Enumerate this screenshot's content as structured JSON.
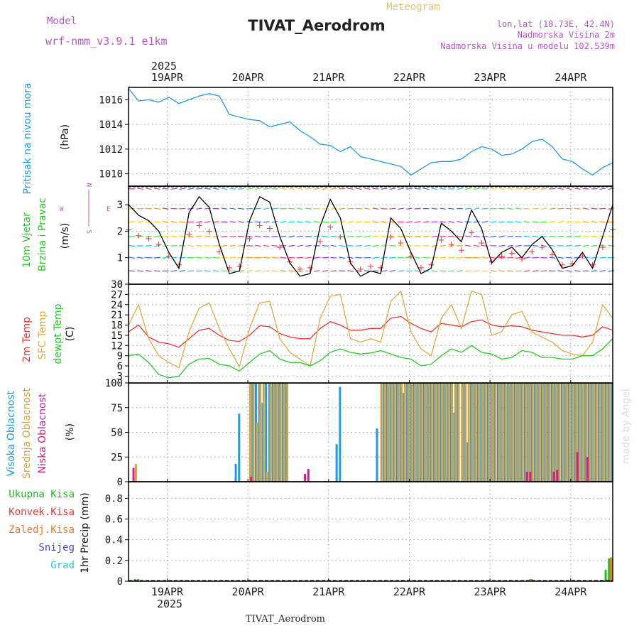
{
  "header": {
    "meteogram_label": "Meteogram",
    "title": "TIVAT_Aerodrom",
    "model_label": "Model",
    "model_name": "wrf-nmm_v3.9.1 e1km",
    "lonlat": "lon,lat (18.73E, 42.4N)",
    "elevation": "Nadmorska Visina 2m",
    "model_elevation": "Nadmorska Visina u modelu 102.539m"
  },
  "footer": {
    "station": "TIVAT_Aerodrom",
    "watermark": "made by Angel"
  },
  "time_axis": {
    "year": "2025",
    "dates": [
      "19APR",
      "20APR",
      "21APR",
      "22APR",
      "23APR",
      "24APR"
    ]
  },
  "colors": {
    "pressure": "#1e9be6",
    "temp_2m": "#ee3333",
    "temp_sfc": "#e0aa40",
    "dewpoint": "#22cc22",
    "cloud_high": "#1e9be6",
    "cloud_mid": "#d4a040",
    "cloud_low": "#cc2288",
    "precip_total": "#22bb22",
    "precip_conv": "#ee3333",
    "precip_frozen": "#ee7722",
    "precip_snow": "#4444dd",
    "precip_hail": "#22cccc",
    "wind_speed": "#000000",
    "gust": "#ee3333",
    "model_label": "#bb55cc",
    "meteogram_label": "#e6c272"
  },
  "panels": {
    "pressure": {
      "ylabel": "Pritisak na nivou mora",
      "unit": "(hPa)"
    },
    "wind": {
      "ylabel1": "10m Vjetar",
      "ylabel2": "Brzina i Pravac",
      "unit": "(m/s)",
      "compass": {
        "n": "N",
        "w": "W",
        "e": "E",
        "s": "S"
      }
    },
    "temperature": {
      "ylabel1": "2m Temp",
      "ylabel2": "SFC Temp",
      "ylabel3": "dewpt Temp",
      "unit": "(C)"
    },
    "cloud": {
      "ylabel1": "Visoka Oblacnost",
      "ylabel2": "Srednja Oblacnost",
      "ylabel3": "Niska Oblacnost",
      "unit": "(%)"
    },
    "precip": {
      "legend": [
        "Ukupna Kisa",
        "Konvek.Kisa",
        "Zaledj.Kisa",
        "Snijeg",
        "Grad"
      ],
      "ylabel": "1hr Precip (mm)"
    }
  },
  "chart_data": [
    {
      "type": "line",
      "title": "Pritisak na nivou mora",
      "ylabel": "(hPa)",
      "ylim": [
        1009,
        1017
      ],
      "yticks": [
        1010,
        1012,
        1014,
        1016
      ],
      "x_unit": "hours since 2025-04-18 12:00 UTC",
      "series": [
        {
          "name": "Pritisak na nivou mora",
          "x": [
            0,
            3,
            6,
            9,
            12,
            15,
            18,
            21,
            24,
            27,
            30,
            33,
            36,
            39,
            42,
            45,
            48,
            51,
            54,
            57,
            60,
            63,
            66,
            69,
            72,
            75,
            78,
            81,
            84,
            87,
            90,
            93,
            96,
            99,
            102,
            105,
            108,
            111,
            114,
            117,
            120,
            123,
            126,
            129,
            132,
            135,
            138,
            141,
            144
          ],
          "y": [
            1016.9,
            1015.9,
            1016.0,
            1015.8,
            1016.2,
            1015.7,
            1016.0,
            1016.3,
            1016.5,
            1016.3,
            1014.8,
            1014.6,
            1014.4,
            1014.3,
            1013.8,
            1014.0,
            1014.2,
            1013.5,
            1013.0,
            1012.4,
            1012.3,
            1011.8,
            1012.2,
            1011.4,
            1011.2,
            1011.0,
            1010.8,
            1010.6,
            1009.9,
            1010.4,
            1010.9,
            1011.0,
            1011.0,
            1011.2,
            1011.8,
            1012.2,
            1012.0,
            1011.5,
            1011.6,
            1012.0,
            1012.6,
            1012.8,
            1012.2,
            1011.2,
            1011.0,
            1010.4,
            1009.9,
            1010.5,
            1010.9
          ]
        }
      ]
    },
    {
      "type": "line",
      "title": "10m Vjetar Brzina i Pravac",
      "ylabel": "(m/s)",
      "ylim": [
        0,
        3.7
      ],
      "yticks": [
        0,
        1,
        2,
        3
      ],
      "x_unit": "hours since 2025-04-18 12:00 UTC",
      "series": [
        {
          "name": "wind speed",
          "x": [
            0,
            3,
            6,
            9,
            12,
            15,
            18,
            21,
            24,
            27,
            30,
            33,
            36,
            39,
            42,
            45,
            48,
            51,
            54,
            57,
            60,
            63,
            66,
            69,
            72,
            75,
            78,
            81,
            84,
            87,
            90,
            93,
            96,
            99,
            102,
            105,
            108,
            111,
            114,
            117,
            120,
            123,
            126,
            129,
            132,
            135,
            138,
            141,
            144
          ],
          "y": [
            3.0,
            2.6,
            2.4,
            2.0,
            1.2,
            0.6,
            2.7,
            3.3,
            2.9,
            1.5,
            0.4,
            0.5,
            2.4,
            3.3,
            3.1,
            1.8,
            0.8,
            0.3,
            0.4,
            2.2,
            3.2,
            2.5,
            0.8,
            0.3,
            0.5,
            0.4,
            2.5,
            2.1,
            1.2,
            0.4,
            0.6,
            2.3,
            2.0,
            1.6,
            2.8,
            2.1,
            0.8,
            1.2,
            1.4,
            1.0,
            1.5,
            1.8,
            1.3,
            0.6,
            0.7,
            1.2,
            0.6,
            1.8,
            3.0
          ]
        }
      ]
    },
    {
      "type": "line",
      "title": "2m Temp / SFC Temp / dewpt Temp",
      "ylabel": "(C)",
      "ylim": [
        1,
        30
      ],
      "yticks": [
        3,
        6,
        9,
        12,
        15,
        18,
        21,
        24,
        27,
        30
      ],
      "x_unit": "hours since 2025-04-18 12:00 UTC",
      "series": [
        {
          "name": "2m Temp",
          "x": [
            0,
            3,
            6,
            9,
            12,
            15,
            18,
            21,
            24,
            27,
            30,
            33,
            36,
            39,
            42,
            45,
            48,
            51,
            54,
            57,
            60,
            63,
            66,
            69,
            72,
            75,
            78,
            81,
            84,
            87,
            90,
            93,
            96,
            99,
            102,
            105,
            108,
            111,
            114,
            117,
            120,
            123,
            126,
            129,
            132,
            135,
            138,
            141,
            144
          ],
          "y": [
            16,
            18,
            14.5,
            13,
            12.5,
            11.5,
            14,
            16.5,
            17,
            15,
            13.5,
            13.2,
            15,
            17.8,
            17.5,
            15.5,
            14.5,
            14,
            14,
            17,
            19,
            18,
            16.5,
            16.5,
            17,
            17,
            20,
            20.5,
            18.5,
            17,
            16,
            18.5,
            18,
            17.5,
            19,
            19.5,
            18,
            17.5,
            17.8,
            17.5,
            16.5,
            16,
            15.5,
            15,
            15,
            14.5,
            15,
            17.5,
            16.5
          ]
        },
        {
          "name": "SFC Temp",
          "x": [
            0,
            3,
            6,
            9,
            12,
            15,
            18,
            21,
            24,
            27,
            30,
            33,
            36,
            39,
            42,
            45,
            48,
            51,
            54,
            57,
            60,
            63,
            66,
            69,
            72,
            75,
            78,
            81,
            84,
            87,
            90,
            93,
            96,
            99,
            102,
            105,
            108,
            111,
            114,
            117,
            120,
            123,
            126,
            129,
            132,
            135,
            138,
            141,
            144
          ],
          "y": [
            18,
            24,
            14,
            9,
            7,
            5.5,
            16,
            23,
            24.5,
            17,
            11,
            5.8,
            17,
            24.5,
            25,
            14,
            10,
            8,
            6,
            20,
            26.5,
            27,
            14,
            13,
            14,
            13,
            25,
            28,
            16,
            11,
            9,
            20,
            24,
            17,
            28,
            27,
            15,
            16,
            21,
            22,
            16,
            14.5,
            13,
            10.5,
            9.5,
            9,
            13,
            24,
            20
          ]
        },
        {
          "name": "dewpt Temp",
          "x": [
            0,
            3,
            6,
            9,
            12,
            15,
            18,
            21,
            24,
            27,
            30,
            33,
            36,
            39,
            42,
            45,
            48,
            51,
            54,
            57,
            60,
            63,
            66,
            69,
            72,
            75,
            78,
            81,
            84,
            87,
            90,
            93,
            96,
            99,
            102,
            105,
            108,
            111,
            114,
            117,
            120,
            123,
            126,
            129,
            132,
            135,
            138,
            141,
            144
          ],
          "y": [
            9,
            9.5,
            7,
            3.5,
            2.5,
            3,
            6.5,
            8,
            8.2,
            6.5,
            6,
            4.5,
            7,
            9.5,
            10.5,
            8,
            7,
            7,
            6,
            7.5,
            10,
            11,
            10,
            9.5,
            9.8,
            10.5,
            9.5,
            8.5,
            8,
            6,
            6.5,
            9,
            11,
            10,
            12,
            10,
            9.5,
            8,
            8.5,
            10.5,
            10,
            8.5,
            8.5,
            8,
            8,
            9,
            9,
            11,
            14
          ]
        }
      ]
    },
    {
      "type": "bar",
      "title": "Visoka / Srednja / Niska Oblacnost",
      "ylabel": "(%)",
      "ylim": [
        0,
        100
      ],
      "yticks": [
        0,
        25,
        50,
        75,
        100
      ],
      "x_unit": "hours since 2025-04-18 12:00 UTC",
      "series": [
        {
          "name": "Visoka Oblacnost",
          "x": [
            32,
            33,
            37,
            38,
            39,
            40,
            41,
            42,
            43,
            44,
            45,
            46,
            47,
            62,
            63,
            74,
            76,
            77,
            78,
            79,
            80,
            81,
            82,
            83,
            84,
            85,
            86,
            87,
            88,
            89,
            90,
            91,
            92,
            93,
            94,
            95,
            96,
            97,
            98,
            100,
            101,
            102,
            103,
            104,
            105,
            106,
            107,
            108,
            109,
            110,
            111,
            112,
            113,
            114,
            115,
            116,
            117,
            118,
            119,
            120,
            121,
            122,
            123,
            124,
            125,
            126,
            127,
            128,
            129,
            130,
            131,
            132,
            133,
            134,
            135,
            136,
            137,
            138,
            139,
            140,
            141,
            142,
            143,
            144
          ],
          "y": [
            18,
            69,
            100,
            100,
            100,
            80,
            100,
            100,
            100,
            100,
            100,
            100,
            100,
            38,
            96,
            54,
            100,
            100,
            100,
            100,
            100,
            100,
            90,
            100,
            100,
            100,
            100,
            100,
            100,
            100,
            100,
            100,
            100,
            100,
            100,
            100,
            100,
            70,
            100,
            100,
            40,
            100,
            100,
            100,
            100,
            100,
            100,
            100,
            100,
            100,
            100,
            100,
            100,
            100,
            100,
            100,
            100,
            100,
            100,
            100,
            100,
            100,
            100,
            100,
            100,
            100,
            100,
            100,
            100,
            100,
            100,
            100,
            100,
            100,
            100,
            100,
            100,
            100,
            100,
            100,
            100,
            100,
            100,
            100
          ]
        },
        {
          "name": "Srednja Oblacnost",
          "x": [
            2,
            36,
            37,
            38,
            39,
            40,
            41,
            42,
            43,
            44,
            45,
            46,
            47,
            75,
            76,
            77,
            78,
            79,
            80,
            81,
            82,
            83,
            84,
            85,
            86,
            87,
            88,
            89,
            90,
            91,
            92,
            93,
            94,
            95,
            96,
            97,
            98,
            99,
            100,
            101,
            102,
            103,
            104,
            105,
            106,
            107,
            108,
            109,
            110,
            111,
            112,
            113,
            114,
            115,
            116,
            117,
            118,
            119,
            120,
            121,
            122,
            123,
            124,
            125,
            126,
            127,
            128,
            129,
            130,
            131,
            132,
            133,
            134,
            135,
            136,
            137,
            138,
            139,
            140,
            141,
            142,
            143
          ],
          "y": [
            18,
            100,
            100,
            60,
            100,
            100,
            10,
            100,
            100,
            100,
            100,
            100,
            100,
            100,
            100,
            100,
            100,
            100,
            100,
            100,
            100,
            100,
            100,
            100,
            100,
            100,
            100,
            100,
            100,
            100,
            100,
            100,
            100,
            100,
            100,
            100,
            100,
            100,
            100,
            100,
            100,
            100,
            100,
            100,
            100,
            100,
            100,
            100,
            100,
            100,
            100,
            100,
            100,
            100,
            100,
            100,
            100,
            100,
            100,
            100,
            100,
            100,
            100,
            100,
            100,
            100,
            100,
            100,
            100,
            100,
            100,
            100,
            100,
            100,
            100,
            100,
            100,
            100,
            100,
            100,
            100,
            100
          ]
        },
        {
          "name": "Niska Oblacnost",
          "x": [
            1,
            36,
            52,
            53,
            118,
            119,
            126,
            127,
            133,
            136
          ],
          "y": [
            14,
            5,
            8,
            13,
            10,
            10,
            10,
            12,
            30,
            25
          ]
        }
      ]
    },
    {
      "type": "bar",
      "title": "1hr Precip",
      "ylabel": "1hr Precip (mm)",
      "ylim": [
        0,
        0.96
      ],
      "yticks": [
        0,
        0.2,
        0.4,
        0.6,
        0.8
      ],
      "x_unit": "hours since 2025-04-18 12:00 UTC",
      "series": [
        {
          "name": "Ukupna Kisa",
          "x": [
            2,
            3,
            120,
            142,
            143
          ],
          "y": [
            0.02,
            0.02,
            0.02,
            0.11,
            0.22
          ]
        },
        {
          "name": "Konvek.Kisa",
          "x": [
            143
          ],
          "y": [
            0.02
          ]
        },
        {
          "name": "Zaledj.Kisa",
          "x": [
            119,
            143
          ],
          "y": [
            0.02,
            0.23
          ]
        },
        {
          "name": "Snijeg",
          "x": [],
          "y": []
        },
        {
          "name": "Grad",
          "x": [],
          "y": []
        }
      ]
    }
  ]
}
